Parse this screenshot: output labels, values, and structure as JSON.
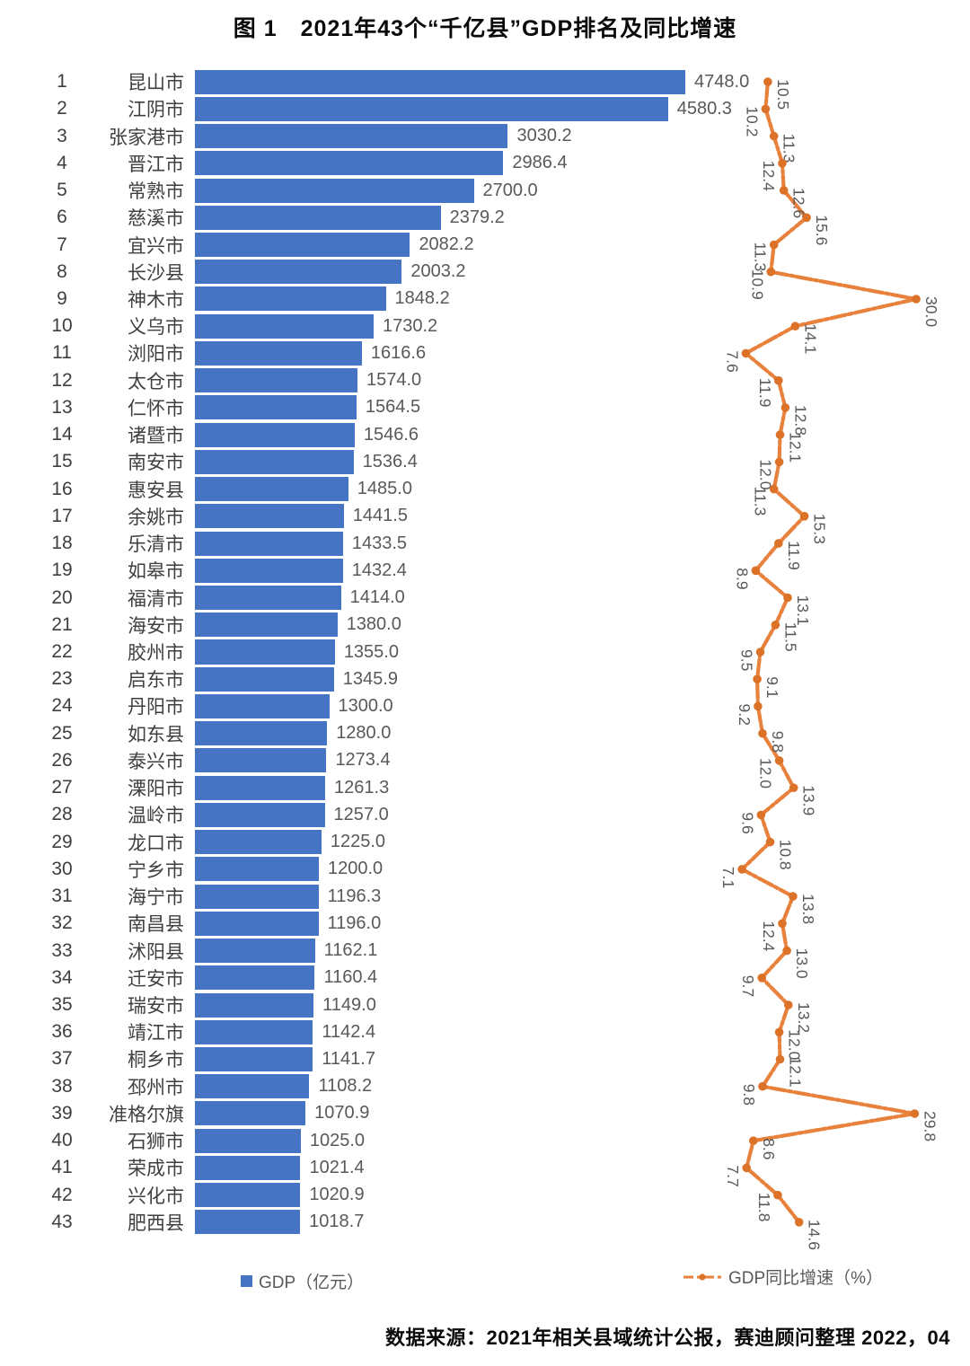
{
  "title": "图 1　2021年43个“千亿县”GDP排名及同比增速",
  "footer": "数据来源：2021年相关县域统计公报，赛迪顾问整理  2022，04",
  "legend": {
    "gdp_label": "GDP（亿元）",
    "growth_label": "GDP同比增速（%）"
  },
  "colors": {
    "bar": "#4574C4",
    "line": "#E8813B",
    "marker": "#DC7228",
    "value_label": "#595959",
    "growth_label": "#595959"
  },
  "chart_data": {
    "type": "bar",
    "subtype": "horizontal-bar-with-line",
    "title": "图 1　2021年43个“千亿县”GDP排名及同比增速",
    "xlabel": "",
    "ylabel": "",
    "bar_unit": "亿元",
    "line_unit": "%",
    "grid": false,
    "legend_position": "bottom",
    "ranks": [
      1,
      2,
      3,
      4,
      5,
      6,
      7,
      8,
      9,
      10,
      11,
      12,
      13,
      14,
      15,
      16,
      17,
      18,
      19,
      20,
      21,
      22,
      23,
      24,
      25,
      26,
      27,
      28,
      29,
      30,
      31,
      32,
      33,
      34,
      35,
      36,
      37,
      38,
      39,
      40,
      41,
      42,
      43
    ],
    "categories": [
      "昆山市",
      "江阴市",
      "张家港市",
      "晋江市",
      "常熟市",
      "慈溪市",
      "宜兴市",
      "长沙县",
      "神木市",
      "义乌市",
      "浏阳市",
      "太仓市",
      "仁怀市",
      "诸暨市",
      "南安市",
      "惠安县",
      "余姚市",
      "乐清市",
      "如皋市",
      "福清市",
      "海安市",
      "胶州市",
      "启东市",
      "丹阳市",
      "如东县",
      "泰兴市",
      "溧阳市",
      "温岭市",
      "龙口市",
      "宁乡市",
      "海宁市",
      "南昌县",
      "沭阳县",
      "迁安市",
      "瑞安市",
      "靖江市",
      "桐乡市",
      "邳州市",
      "准格尔旗",
      "石狮市",
      "荣成市",
      "兴化市",
      "肥西县"
    ],
    "series": [
      {
        "name": "GDP（亿元）",
        "type": "bar",
        "values": [
          4748.0,
          4580.3,
          3030.2,
          2986.4,
          2700.0,
          2379.2,
          2082.2,
          2003.2,
          1848.2,
          1730.2,
          1616.6,
          1574.0,
          1564.5,
          1546.6,
          1536.4,
          1485.0,
          1441.5,
          1433.5,
          1432.4,
          1414.0,
          1380.0,
          1355.0,
          1345.9,
          1300.0,
          1280.0,
          1273.4,
          1261.3,
          1257.0,
          1225.0,
          1200.0,
          1196.3,
          1196.0,
          1162.1,
          1160.4,
          1149.0,
          1142.4,
          1141.7,
          1108.2,
          1070.9,
          1025.0,
          1021.4,
          1020.9,
          1018.7
        ]
      },
      {
        "name": "GDP同比增速（%）",
        "type": "line",
        "values": [
          10.5,
          10.2,
          11.3,
          12.4,
          12.6,
          15.6,
          11.3,
          10.9,
          30.0,
          14.1,
          7.6,
          11.9,
          12.8,
          12.1,
          12.0,
          11.3,
          15.3,
          11.9,
          8.9,
          13.1,
          11.5,
          9.5,
          9.1,
          9.2,
          9.8,
          12.0,
          13.9,
          9.6,
          10.8,
          7.1,
          13.8,
          12.4,
          13.0,
          9.7,
          13.2,
          12.0,
          12.1,
          9.8,
          29.8,
          8.6,
          7.7,
          11.8,
          14.6
        ],
        "label_sides": [
          "R",
          "L",
          "R",
          "L",
          "R",
          "R",
          "L",
          "L",
          "R",
          "R",
          "L",
          "L",
          "R",
          "R",
          "L",
          "L",
          "R",
          "R",
          "L",
          "R",
          "R",
          "L",
          "R",
          "L",
          "R",
          "L",
          "R",
          "L",
          "R",
          "L",
          "R",
          "L",
          "R",
          "L",
          "R",
          "R",
          "R",
          "L",
          "R",
          "R",
          "L",
          "L",
          "R"
        ]
      }
    ]
  }
}
